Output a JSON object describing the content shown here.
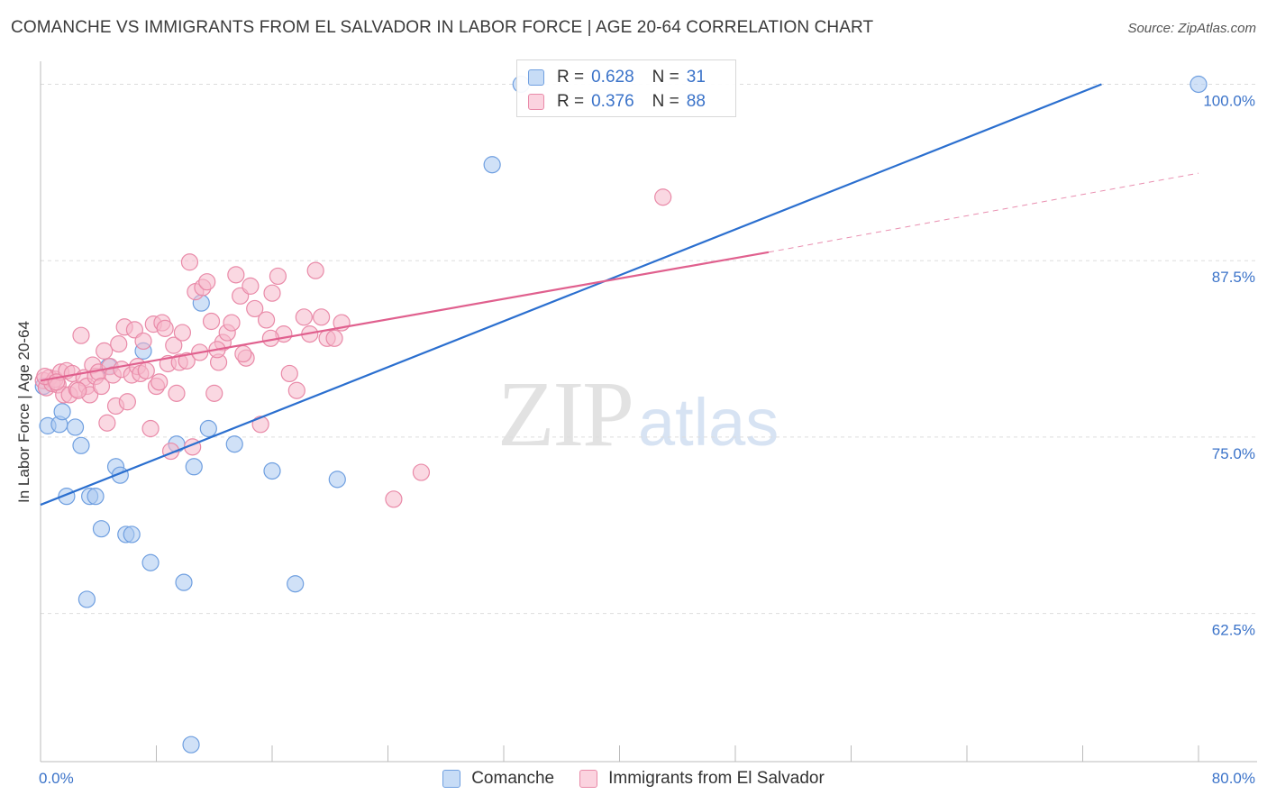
{
  "header": {
    "title": "COMANCHE VS IMMIGRANTS FROM EL SALVADOR IN LABOR FORCE | AGE 20-64 CORRELATION CHART",
    "source": "Source: ZipAtlas.com"
  },
  "watermark": {
    "zip": "ZIP",
    "atlas": "atlas"
  },
  "colors": {
    "blue_fill": "#a9c8f0",
    "blue_stroke": "#6f9fe0",
    "blue_line": "#2b6fcf",
    "pink_fill": "#f6b8cb",
    "pink_stroke": "#e98aa8",
    "pink_line": "#e0608e",
    "axis_text": "#3b73c9",
    "grid": "#dddddd"
  },
  "stats_legend": {
    "rows": [
      {
        "r_label": "R =",
        "r_value": "0.628",
        "n_label": "N =",
        "n_value": "31"
      },
      {
        "r_label": "R =",
        "r_value": "0.376",
        "n_label": "N =",
        "n_value": "88"
      }
    ]
  },
  "chart_data": {
    "type": "scatter",
    "title": "COMANCHE VS IMMIGRANTS FROM EL SALVADOR IN LABOR FORCE | AGE 20-64 CORRELATION CHART",
    "xlabel": "",
    "ylabel": "In Labor Force | Age 20-64",
    "xlim": [
      0,
      80
    ],
    "ylim": [
      52.0,
      101.5
    ],
    "x_tick_labels": [
      "0.0%",
      "80.0%"
    ],
    "y_ticks": [
      62.5,
      75.0,
      87.5,
      100.0
    ],
    "y_tick_labels": [
      "62.5%",
      "75.0%",
      "87.5%",
      "100.0%"
    ],
    "x_minor_ticks": [
      0,
      8,
      16,
      24,
      32,
      40,
      48,
      56,
      64,
      72,
      80
    ],
    "grid": true,
    "legend": [
      "Comanche",
      "Immigrants from El Salvador"
    ],
    "series": [
      {
        "name": "Comanche",
        "color": "blue",
        "r": 0.628,
        "n": 31,
        "points": [
          [
            0.5,
            75.8
          ],
          [
            1.3,
            75.9
          ],
          [
            1.5,
            76.8
          ],
          [
            1.8,
            70.8
          ],
          [
            2.4,
            75.7
          ],
          [
            2.8,
            74.4
          ],
          [
            3.2,
            63.5
          ],
          [
            3.4,
            70.8
          ],
          [
            3.8,
            70.8
          ],
          [
            4.2,
            68.5
          ],
          [
            4.7,
            80.0
          ],
          [
            5.2,
            72.9
          ],
          [
            5.5,
            72.3
          ],
          [
            5.9,
            68.1
          ],
          [
            6.3,
            68.1
          ],
          [
            7.1,
            81.1
          ],
          [
            7.6,
            66.1
          ],
          [
            9.4,
            74.5
          ],
          [
            9.9,
            64.7
          ],
          [
            10.4,
            53.2
          ],
          [
            10.6,
            72.9
          ],
          [
            11.1,
            84.5
          ],
          [
            11.6,
            75.6
          ],
          [
            13.4,
            74.5
          ],
          [
            16.0,
            72.6
          ],
          [
            17.6,
            64.6
          ],
          [
            20.5,
            72.0
          ],
          [
            31.2,
            94.3
          ],
          [
            33.2,
            100.0
          ],
          [
            80.0,
            100.0
          ],
          [
            0.2,
            78.6
          ]
        ],
        "trend": [
          [
            0,
            70.2
          ],
          [
            73.3,
            100.0
          ]
        ]
      },
      {
        "name": "Immigrants from El Salvador",
        "color": "pink",
        "r": 0.376,
        "n": 88,
        "points": [
          [
            0.2,
            79.0
          ],
          [
            0.4,
            78.5
          ],
          [
            0.6,
            79.2
          ],
          [
            0.8,
            78.8
          ],
          [
            1.0,
            79.1
          ],
          [
            1.2,
            78.7
          ],
          [
            1.4,
            79.6
          ],
          [
            1.6,
            78.0
          ],
          [
            1.8,
            79.7
          ],
          [
            2.0,
            78.0
          ],
          [
            2.2,
            79.5
          ],
          [
            2.5,
            78.4
          ],
          [
            2.8,
            82.2
          ],
          [
            3.0,
            79.2
          ],
          [
            3.2,
            78.6
          ],
          [
            3.4,
            78.0
          ],
          [
            3.6,
            80.1
          ],
          [
            3.8,
            79.3
          ],
          [
            4.0,
            79.6
          ],
          [
            4.2,
            78.6
          ],
          [
            4.4,
            81.1
          ],
          [
            4.6,
            76.0
          ],
          [
            4.8,
            80.0
          ],
          [
            5.0,
            79.4
          ],
          [
            5.2,
            77.2
          ],
          [
            5.4,
            81.6
          ],
          [
            5.6,
            79.8
          ],
          [
            5.8,
            82.8
          ],
          [
            6.0,
            77.5
          ],
          [
            6.3,
            79.4
          ],
          [
            6.5,
            82.6
          ],
          [
            6.7,
            80.0
          ],
          [
            6.9,
            79.5
          ],
          [
            7.1,
            81.8
          ],
          [
            7.3,
            79.7
          ],
          [
            7.6,
            75.6
          ],
          [
            7.8,
            83.0
          ],
          [
            8.0,
            78.6
          ],
          [
            8.2,
            78.9
          ],
          [
            8.4,
            83.1
          ],
          [
            8.6,
            82.7
          ],
          [
            8.8,
            80.2
          ],
          [
            9.0,
            74.0
          ],
          [
            9.2,
            81.5
          ],
          [
            9.4,
            78.1
          ],
          [
            9.6,
            80.3
          ],
          [
            9.8,
            82.4
          ],
          [
            10.1,
            80.4
          ],
          [
            10.3,
            87.4
          ],
          [
            10.5,
            74.3
          ],
          [
            10.7,
            85.3
          ],
          [
            11.0,
            81.0
          ],
          [
            11.2,
            85.6
          ],
          [
            11.5,
            86.0
          ],
          [
            11.8,
            83.2
          ],
          [
            12.0,
            78.1
          ],
          [
            12.3,
            80.3
          ],
          [
            12.6,
            81.7
          ],
          [
            12.9,
            82.4
          ],
          [
            13.2,
            83.1
          ],
          [
            13.5,
            86.5
          ],
          [
            13.8,
            85.0
          ],
          [
            14.2,
            80.6
          ],
          [
            14.5,
            85.7
          ],
          [
            14.8,
            84.1
          ],
          [
            15.2,
            75.9
          ],
          [
            15.6,
            83.3
          ],
          [
            16.0,
            85.2
          ],
          [
            16.4,
            86.4
          ],
          [
            16.8,
            82.3
          ],
          [
            17.2,
            79.5
          ],
          [
            17.7,
            78.3
          ],
          [
            18.2,
            83.5
          ],
          [
            18.6,
            82.3
          ],
          [
            19.0,
            86.8
          ],
          [
            19.4,
            83.5
          ],
          [
            19.8,
            82.0
          ],
          [
            20.3,
            82.0
          ],
          [
            20.8,
            83.1
          ],
          [
            24.4,
            70.6
          ],
          [
            26.3,
            72.5
          ],
          [
            43.0,
            92.0
          ],
          [
            0.3,
            79.3
          ],
          [
            1.1,
            78.9
          ],
          [
            2.6,
            78.3
          ],
          [
            12.2,
            81.2
          ],
          [
            14.0,
            80.9
          ],
          [
            15.9,
            82.0
          ]
        ],
        "trend": [
          [
            0,
            79.0
          ],
          [
            50.3,
            88.1
          ]
        ],
        "trend_dashed": [
          [
            50.3,
            88.1
          ],
          [
            80.0,
            93.7
          ]
        ]
      }
    ]
  }
}
